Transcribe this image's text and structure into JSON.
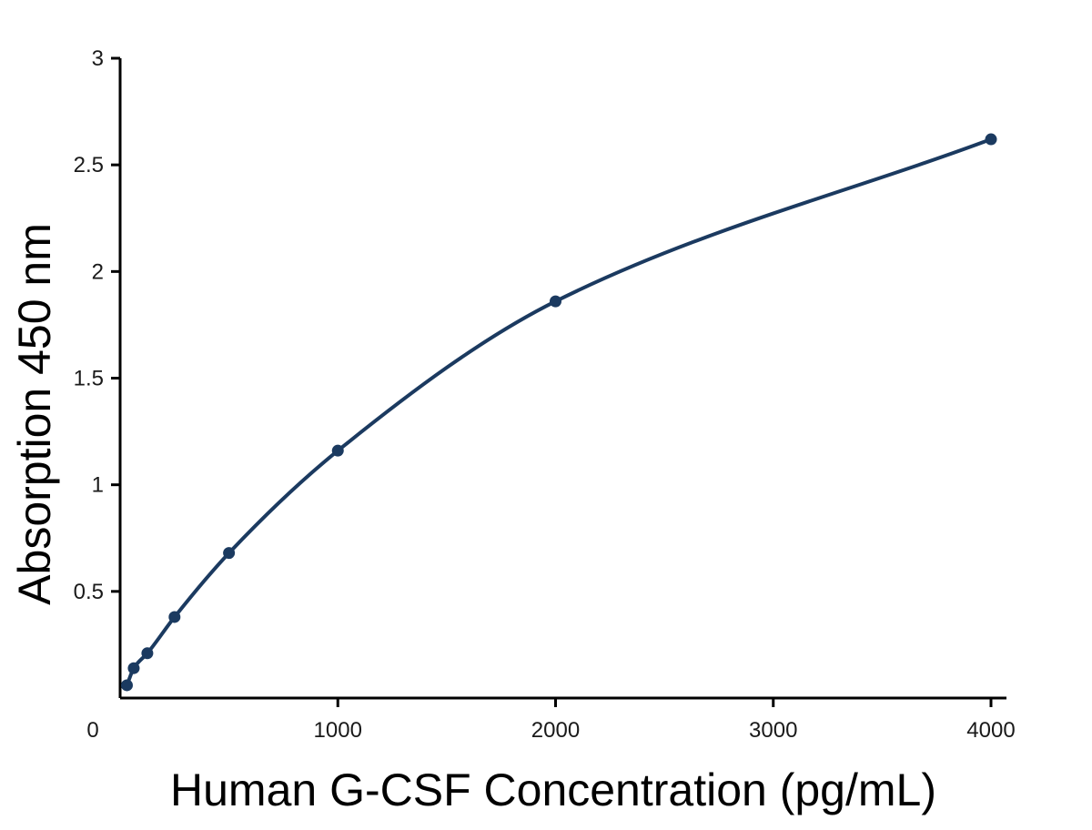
{
  "chart_data": {
    "type": "scatter",
    "title": "",
    "xlabel": "Human G-CSF Concentration (pg/mL)",
    "ylabel": "Absorption 450 nm",
    "xlim": [
      0,
      4000
    ],
    "ylim": [
      0,
      3
    ],
    "x_ticks": [
      0,
      1000,
      2000,
      3000,
      4000
    ],
    "x_tick_labels": [
      "0",
      "1000",
      "2000",
      "3000",
      "4000"
    ],
    "y_ticks": [
      0.5,
      1,
      1.5,
      2,
      2.5,
      3
    ],
    "y_tick_labels": [
      "0.5",
      "1",
      "1.5",
      "2",
      "2.5",
      "3"
    ],
    "grid": false,
    "fit_curve": true,
    "colors": {
      "series": "#1b3a60",
      "axis": "#000000"
    },
    "series": [
      {
        "x": [
          31.25,
          62.5,
          125,
          250,
          500,
          1000,
          2000,
          4000
        ],
        "y": [
          0.06,
          0.14,
          0.21,
          0.38,
          0.68,
          1.16,
          1.86,
          2.62
        ]
      }
    ]
  }
}
